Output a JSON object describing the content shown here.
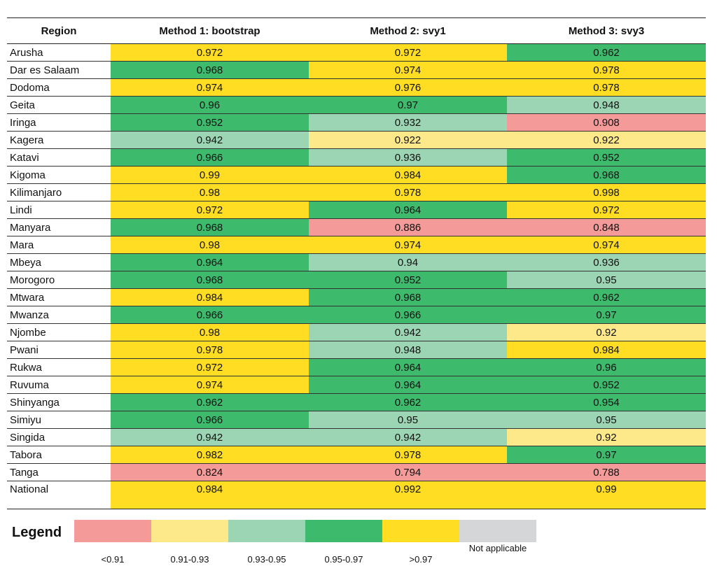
{
  "chart_data": {
    "type": "table",
    "title": "",
    "columns": [
      "Region",
      "Method 1: bootstrap",
      "Method 2: svy1",
      "Method 3: svy3"
    ],
    "rows": [
      {
        "region": "Arusha",
        "values": [
          0.972,
          0.972,
          0.962
        ]
      },
      {
        "region": "Dar es Salaam",
        "values": [
          0.968,
          0.974,
          0.978
        ]
      },
      {
        "region": "Dodoma",
        "values": [
          0.974,
          0.976,
          0.978
        ]
      },
      {
        "region": "Geita",
        "values": [
          0.96,
          0.97,
          0.948
        ]
      },
      {
        "region": "Iringa",
        "values": [
          0.952,
          0.932,
          0.908
        ]
      },
      {
        "region": "Kagera",
        "values": [
          0.942,
          0.922,
          0.922
        ]
      },
      {
        "region": "Katavi",
        "values": [
          0.966,
          0.936,
          0.952
        ]
      },
      {
        "region": "Kigoma",
        "values": [
          0.99,
          0.984,
          0.968
        ]
      },
      {
        "region": "Kilimanjaro",
        "values": [
          0.98,
          0.978,
          0.998
        ]
      },
      {
        "region": "Lindi",
        "values": [
          0.972,
          0.964,
          0.972
        ]
      },
      {
        "region": "Manyara",
        "values": [
          0.968,
          0.886,
          0.848
        ]
      },
      {
        "region": "Mara",
        "values": [
          0.98,
          0.974,
          0.974
        ]
      },
      {
        "region": "Mbeya",
        "values": [
          0.964,
          0.94,
          0.936
        ]
      },
      {
        "region": "Morogoro",
        "values": [
          0.968,
          0.952,
          0.95
        ]
      },
      {
        "region": "Mtwara",
        "values": [
          0.984,
          0.968,
          0.962
        ]
      },
      {
        "region": "Mwanza",
        "values": [
          0.966,
          0.966,
          0.97
        ]
      },
      {
        "region": "Njombe",
        "values": [
          0.98,
          0.942,
          0.92
        ]
      },
      {
        "region": "Pwani",
        "values": [
          0.978,
          0.948,
          0.984
        ]
      },
      {
        "region": "Rukwa",
        "values": [
          0.972,
          0.964,
          0.96
        ]
      },
      {
        "region": "Ruvuma",
        "values": [
          0.974,
          0.964,
          0.952
        ]
      },
      {
        "region": "Shinyanga",
        "values": [
          0.962,
          0.962,
          0.954
        ]
      },
      {
        "region": "Simiyu",
        "values": [
          0.966,
          0.95,
          0.95
        ]
      },
      {
        "region": "Singida",
        "values": [
          0.942,
          0.942,
          0.92
        ]
      },
      {
        "region": "Tabora",
        "values": [
          0.982,
          0.978,
          0.97
        ]
      },
      {
        "region": "Tanga",
        "values": [
          0.824,
          0.794,
          0.788
        ]
      },
      {
        "region": "National",
        "values": [
          0.984,
          0.992,
          0.99
        ]
      }
    ],
    "cell_colors": [
      [
        "y",
        "y",
        "dg"
      ],
      [
        "dg",
        "y",
        "y"
      ],
      [
        "y",
        "y",
        "y"
      ],
      [
        "dg",
        "dg",
        "lg"
      ],
      [
        "dg",
        "lg",
        "r"
      ],
      [
        "lg",
        "ly",
        "ly"
      ],
      [
        "dg",
        "lg",
        "dg"
      ],
      [
        "y",
        "y",
        "dg"
      ],
      [
        "y",
        "y",
        "y"
      ],
      [
        "y",
        "dg",
        "y"
      ],
      [
        "dg",
        "r",
        "r"
      ],
      [
        "y",
        "y",
        "y"
      ],
      [
        "dg",
        "lg",
        "lg"
      ],
      [
        "dg",
        "dg",
        "lg"
      ],
      [
        "y",
        "dg",
        "dg"
      ],
      [
        "dg",
        "dg",
        "dg"
      ],
      [
        "y",
        "lg",
        "ly"
      ],
      [
        "y",
        "lg",
        "y"
      ],
      [
        "y",
        "dg",
        "dg"
      ],
      [
        "y",
        "dg",
        "dg"
      ],
      [
        "dg",
        "dg",
        "dg"
      ],
      [
        "dg",
        "lg",
        "lg"
      ],
      [
        "lg",
        "lg",
        "ly"
      ],
      [
        "y",
        "y",
        "dg"
      ],
      [
        "r",
        "r",
        "r"
      ],
      [
        "y",
        "y",
        "y"
      ]
    ],
    "palette": {
      "r": "#f49a99",
      "ly": "#fde98a",
      "lg": "#9cd5b3",
      "dg": "#3dba6c",
      "y": "#fedd22",
      "na": "#d5d6d8"
    },
    "legend": {
      "title": "Legend",
      "items": [
        {
          "label": "<0.91",
          "color": "#f49a99"
        },
        {
          "label": "0.91-0.93",
          "color": "#fde98a"
        },
        {
          "label": "0.93-0.95",
          "color": "#9cd5b3"
        },
        {
          "label": "0.95-0.97",
          "color": "#3dba6c"
        },
        {
          "label": ">0.97",
          "color": "#fedd22"
        },
        {
          "label": "Not applicable",
          "color": "#d5d6d8"
        }
      ]
    }
  }
}
